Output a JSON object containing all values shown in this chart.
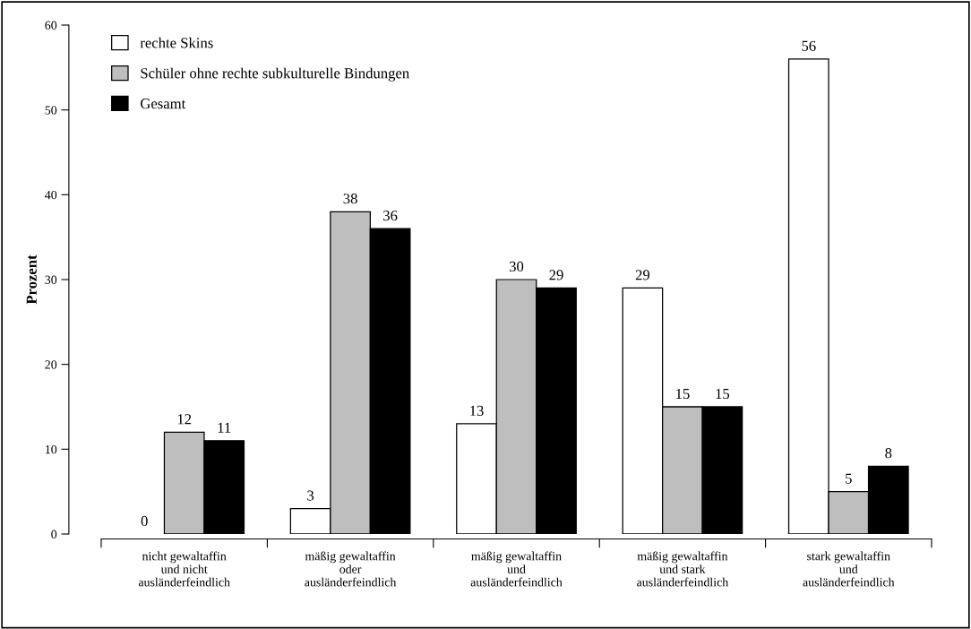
{
  "chart_data": {
    "type": "bar",
    "ylabel": "Prozent",
    "categories": [
      "nicht gewaltaffin\nund nicht\nausländerfeindlich",
      "mäßig gewaltaffin\noder\nausländerfeindlich",
      "mäßig gewaltaffin\nund\nausländerfeindlich",
      "mäßig gewaltaffin\nund stark\nausländerfeindlich",
      "stark gewaltaffin\nund\nausländerfeindlich"
    ],
    "series": [
      {
        "name": "rechte Skins",
        "color": "#ffffff",
        "values": [
          0,
          3,
          13,
          29,
          56
        ]
      },
      {
        "name": "Schüler ohne rechte subkulturelle Bindungen",
        "color": "#bebebe",
        "values": [
          12,
          38,
          30,
          15,
          5
        ]
      },
      {
        "name": "Gesamt",
        "color": "#000000",
        "values": [
          11,
          36,
          29,
          15,
          8
        ]
      }
    ],
    "ylim": [
      0,
      60
    ],
    "yticks": [
      0,
      10,
      20,
      30,
      40,
      50,
      60
    ],
    "data_labels": true,
    "grid": false,
    "legend": "top left"
  }
}
